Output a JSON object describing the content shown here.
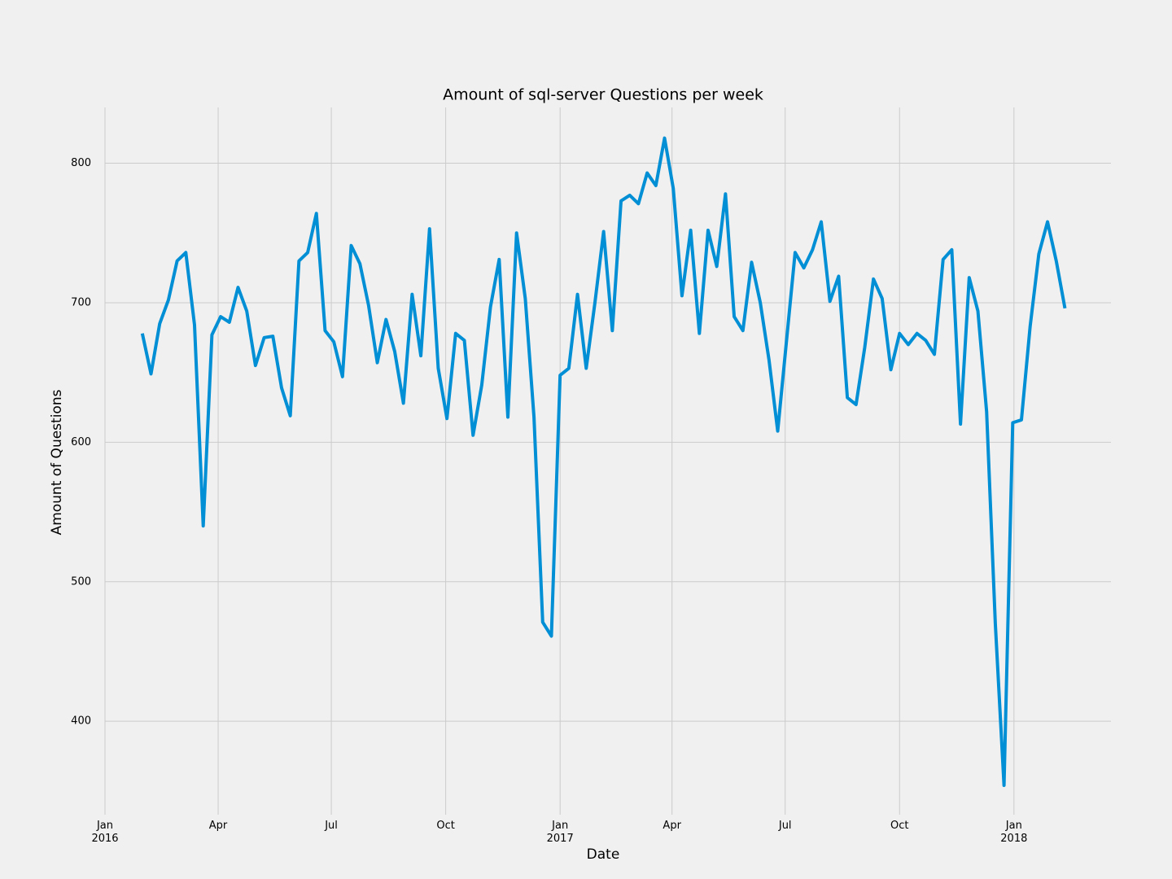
{
  "chart_data": {
    "type": "line",
    "title": "Amount of sql-server Questions per week",
    "xlabel": "Date",
    "ylabel": "Amount of Questions",
    "x": [
      "2016-01-31",
      "2016-02-07",
      "2016-02-14",
      "2016-02-21",
      "2016-02-28",
      "2016-03-06",
      "2016-03-13",
      "2016-03-20",
      "2016-03-27",
      "2016-04-03",
      "2016-04-10",
      "2016-04-17",
      "2016-04-24",
      "2016-05-01",
      "2016-05-08",
      "2016-05-15",
      "2016-05-22",
      "2016-05-29",
      "2016-06-05",
      "2016-06-12",
      "2016-06-19",
      "2016-06-26",
      "2016-07-03",
      "2016-07-10",
      "2016-07-17",
      "2016-07-24",
      "2016-07-31",
      "2016-08-07",
      "2016-08-14",
      "2016-08-21",
      "2016-08-28",
      "2016-09-04",
      "2016-09-11",
      "2016-09-18",
      "2016-09-25",
      "2016-10-02",
      "2016-10-09",
      "2016-10-16",
      "2016-10-23",
      "2016-10-30",
      "2016-11-06",
      "2016-11-13",
      "2016-11-20",
      "2016-11-27",
      "2016-12-04",
      "2016-12-11",
      "2016-12-18",
      "2016-12-25",
      "2017-01-01",
      "2017-01-08",
      "2017-01-15",
      "2017-01-22",
      "2017-01-29",
      "2017-02-05",
      "2017-02-12",
      "2017-02-19",
      "2017-02-26",
      "2017-03-05",
      "2017-03-12",
      "2017-03-19",
      "2017-03-26",
      "2017-04-02",
      "2017-04-09",
      "2017-04-16",
      "2017-04-23",
      "2017-04-30",
      "2017-05-07",
      "2017-05-14",
      "2017-05-21",
      "2017-05-28",
      "2017-06-04",
      "2017-06-11",
      "2017-06-18",
      "2017-06-25",
      "2017-07-02",
      "2017-07-09",
      "2017-07-16",
      "2017-07-23",
      "2017-07-30",
      "2017-08-06",
      "2017-08-13",
      "2017-08-20",
      "2017-08-27",
      "2017-09-03",
      "2017-09-10",
      "2017-09-17",
      "2017-09-24",
      "2017-10-01",
      "2017-10-08",
      "2017-10-15",
      "2017-10-22",
      "2017-10-29",
      "2017-11-05",
      "2017-11-12",
      "2017-11-19",
      "2017-11-26",
      "2017-12-03",
      "2017-12-10",
      "2017-12-17",
      "2017-12-24",
      "2017-12-31",
      "2018-01-07",
      "2018-01-14",
      "2018-01-21",
      "2018-01-28",
      "2018-02-04",
      "2018-02-11"
    ],
    "series": [
      {
        "name": "sql-server",
        "color": "#008fd5",
        "values": [
          678,
          649,
          685,
          702,
          730,
          736,
          684,
          540,
          677,
          690,
          686,
          711,
          694,
          655,
          675,
          676,
          639,
          619,
          730,
          736,
          764,
          680,
          672,
          647,
          741,
          728,
          698,
          657,
          688,
          665,
          628,
          706,
          662,
          753,
          653,
          617,
          678,
          673,
          605,
          641,
          697,
          731,
          618,
          750,
          703,
          618,
          471,
          461,
          648,
          653,
          706,
          653,
          700,
          751,
          680,
          773,
          777,
          771,
          793,
          784,
          818,
          782,
          705,
          752,
          678,
          752,
          726,
          778,
          690,
          680,
          729,
          700,
          659,
          608,
          672,
          736,
          725,
          738,
          758,
          701,
          719,
          632,
          627,
          668,
          717,
          703,
          652,
          678,
          670,
          678,
          673,
          663,
          731,
          738,
          613,
          718,
          694,
          622,
          470,
          354,
          614,
          616,
          683,
          735,
          758,
          730,
          696
        ]
      }
    ],
    "xlim": [
      "2016-01-01",
      "2018-03-20"
    ],
    "xticks": [
      {
        "value": "2016-01-01",
        "label": "Jan\n2016"
      },
      {
        "value": "2016-04-01",
        "label": "Apr"
      },
      {
        "value": "2016-07-01",
        "label": "Jul"
      },
      {
        "value": "2016-10-01",
        "label": "Oct"
      },
      {
        "value": "2017-01-01",
        "label": "Jan\n2017"
      },
      {
        "value": "2017-04-01",
        "label": "Apr"
      },
      {
        "value": "2017-07-01",
        "label": "Jul"
      },
      {
        "value": "2017-10-01",
        "label": "Oct"
      },
      {
        "value": "2018-01-01",
        "label": "Jan\n2018"
      }
    ],
    "ylim": [
      333,
      840
    ],
    "yticks": [
      400,
      500,
      600,
      700,
      800
    ],
    "grid": true
  }
}
